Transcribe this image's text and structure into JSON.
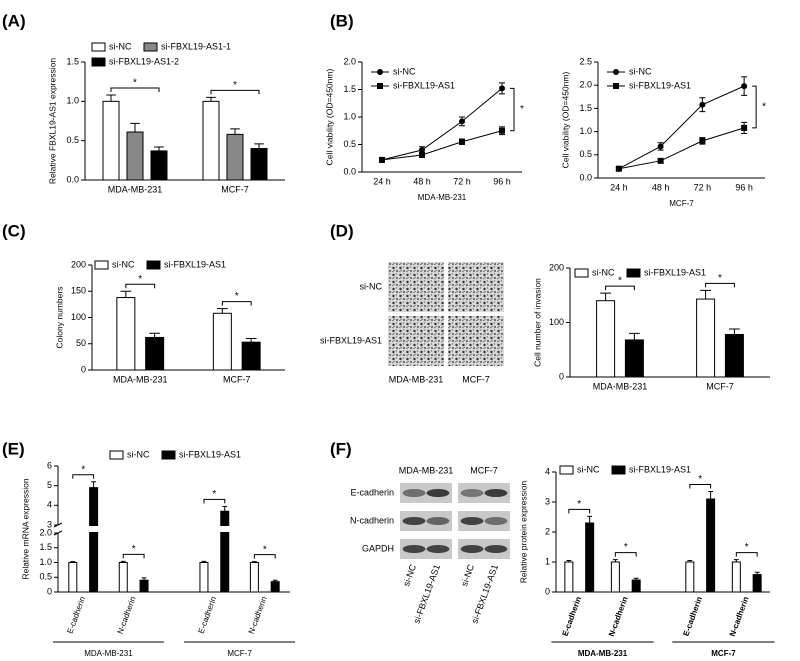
{
  "chart_data": [
    {
      "panel": "(A)",
      "type": "bar",
      "ylabel": "Relative FBXL19-AS1 expression",
      "categories": [
        "MDA-MB-231",
        "MCF-7"
      ],
      "series": [
        {
          "name": "si-NC",
          "color": "#ffffff",
          "values": [
            1.0,
            1.0
          ],
          "errors": [
            0.08,
            0.05
          ]
        },
        {
          "name": "si-FBXL19-AS1-1",
          "color": "#888888",
          "values": [
            0.61,
            0.58
          ],
          "errors": [
            0.11,
            0.07
          ]
        },
        {
          "name": "si-FBXL19-AS1-2",
          "color": "#000000",
          "values": [
            0.37,
            0.4
          ],
          "errors": [
            0.05,
            0.06
          ]
        }
      ],
      "ylim": [
        0,
        1.5
      ],
      "yticks": [
        {
          "value": 0,
          "label": "0.0"
        },
        0.5,
        {
          "value": 1,
          "label": "1.0"
        },
        1.5
      ],
      "annotations": [
        "*",
        "*"
      ],
      "legend": "top"
    },
    {
      "panel": "(B)",
      "type": "line",
      "xlabel": "MDA-MB-231",
      "ylabel": "Cell viability (OD=450nm)",
      "categories": [
        "24 h",
        "48 h",
        "72 h",
        "96 h"
      ],
      "series": [
        {
          "name": "si-NC",
          "color": "#000000",
          "marker": "circle",
          "values": [
            0.22,
            0.4,
            0.92,
            1.52
          ],
          "errors": [
            0.03,
            0.06,
            0.08,
            0.1
          ]
        },
        {
          "name": "si-FBXL19-AS1",
          "color": "#000000",
          "marker": "square",
          "values": [
            0.22,
            0.31,
            0.55,
            0.75
          ],
          "errors": [
            0.03,
            0.04,
            0.05,
            0.07
          ]
        }
      ],
      "ylim": [
        0,
        2
      ],
      "yticks": [
        {
          "value": 0,
          "label": "0.0"
        },
        0.5,
        {
          "value": 1,
          "label": "1.0"
        },
        1.5,
        {
          "value": 2,
          "label": "2.0"
        }
      ],
      "annotations": [
        "*"
      ],
      "legend": "upper left"
    },
    {
      "type": "line",
      "xlabel": "MCF-7",
      "ylabel": "Cell viability (OD=450nm)",
      "categories": [
        "24 h",
        "48 h",
        "72 h",
        "96 h"
      ],
      "series": [
        {
          "name": "si-NC",
          "color": "#000000",
          "marker": "circle",
          "values": [
            0.2,
            0.68,
            1.58,
            1.98
          ],
          "errors": [
            0.03,
            0.08,
            0.15,
            0.2
          ]
        },
        {
          "name": "si-FBXL19-AS1",
          "color": "#000000",
          "marker": "square",
          "values": [
            0.2,
            0.37,
            0.8,
            1.08
          ],
          "errors": [
            0.03,
            0.04,
            0.07,
            0.12
          ]
        }
      ],
      "ylim": [
        0,
        2.5
      ],
      "yticks": [
        {
          "value": 0,
          "label": "0.0"
        },
        0.5,
        {
          "value": 1,
          "label": "1.0"
        },
        1.5,
        {
          "value": 2,
          "label": "2.0"
        },
        2.5
      ],
      "annotations": [
        "*"
      ],
      "legend": "upper left"
    },
    {
      "panel": "(C)",
      "type": "bar",
      "ylabel": "Colony numbers",
      "categories": [
        "MDA-MB-231",
        "MCF-7"
      ],
      "series": [
        {
          "name": "si-NC",
          "color": "#ffffff",
          "values": [
            138,
            108
          ],
          "errors": [
            12,
            9
          ]
        },
        {
          "name": "si-FBXL19-AS1",
          "color": "#000000",
          "values": [
            62,
            53
          ],
          "errors": [
            8,
            7
          ]
        }
      ],
      "ylim": [
        0,
        200
      ],
      "yticks": [
        0,
        50,
        100,
        150,
        200
      ],
      "annotations": [
        "*",
        "*"
      ],
      "legend": "top"
    },
    {
      "panel": "(D)",
      "type": "bar",
      "image_rows": [
        "si-NC",
        "si-FBXL19-AS1"
      ],
      "image_columns": [
        "MDA-MB-231",
        "MCF-7"
      ],
      "ylabel": "Cell number of invasion",
      "categories": [
        "MDA-MB-231",
        "MCF-7"
      ],
      "series": [
        {
          "name": "si-NC",
          "color": "#ffffff",
          "values": [
            140,
            143
          ],
          "errors": [
            14,
            16
          ]
        },
        {
          "name": "si-FBXL19-AS1",
          "color": "#000000",
          "values": [
            68,
            78
          ],
          "errors": [
            12,
            10
          ]
        }
      ],
      "ylim": [
        0,
        200
      ],
      "yticks": [
        0,
        100,
        200
      ],
      "annotations": [
        "*",
        "*"
      ],
      "legend": "top"
    },
    {
      "panel": "(E)",
      "type": "bar",
      "ylabel": "Relative mRNA expression",
      "groups": [
        {
          "name": "MDA-MB-231",
          "categories": [
            "E-cadherin",
            "N-cadherin"
          ]
        },
        {
          "name": "MCF-7",
          "categories": [
            "E-cadherin",
            "N-cadherin"
          ]
        }
      ],
      "series": [
        {
          "name": "si-NC",
          "color": "#ffffff",
          "values": [
            1,
            1,
            1,
            1
          ],
          "errors": [
            0.03,
            0.04,
            0.04,
            0.03
          ]
        },
        {
          "name": "si-FBXL19-AS1",
          "color": "#000000",
          "values": [
            4.9,
            0.4,
            3.7,
            0.35
          ],
          "errors": [
            0.3,
            0.08,
            0.25,
            0.05
          ]
        }
      ],
      "ylim": [
        0,
        6
      ],
      "yticks": [
        0,
        0.5,
        {
          "value": 1,
          "label": "1.0"
        },
        1.5,
        {
          "value": 2,
          "label": "2.0"
        },
        3,
        4,
        5,
        6
      ],
      "broken_axis": [
        2,
        3
      ],
      "xticks_rotated": true,
      "annotations": [
        "*",
        "*",
        "*",
        "*"
      ],
      "legend": "top"
    },
    {
      "panel": "(F)",
      "type": "bar",
      "ylabel": "Relative protein expression",
      "blot_columns": [
        "MDA-MB-231",
        "MCF-7"
      ],
      "blot_rows": [
        "E-cadherin",
        "N-cadherin",
        "GAPDH"
      ],
      "blot_lanes": [
        "si-NC",
        "si-FBXL19-AS1",
        "si-NC",
        "si-FBXL19-AS1"
      ],
      "groups": [
        {
          "name": "MDA-MB-231",
          "categories": [
            "E-cadherin",
            "N-cadherin"
          ]
        },
        {
          "name": "MCF-7",
          "categories": [
            "E-cadherin",
            "N-cadherin"
          ]
        }
      ],
      "series": [
        {
          "name": "si-NC",
          "color": "#ffffff",
          "values": [
            1,
            1,
            1,
            1
          ],
          "errors": [
            0.05,
            0.08,
            0.05,
            0.08
          ]
        },
        {
          "name": "si-FBXL19-AS1",
          "color": "#000000",
          "values": [
            2.3,
            0.4,
            3.1,
            0.58
          ],
          "errors": [
            0.22,
            0.06,
            0.25,
            0.08
          ]
        }
      ],
      "ylim": [
        0,
        4
      ],
      "yticks": [
        0,
        1,
        2,
        3,
        4
      ],
      "xticks_rotated": true,
      "annotations": [
        "*",
        "*",
        "*",
        "*"
      ],
      "legend": "top"
    }
  ]
}
